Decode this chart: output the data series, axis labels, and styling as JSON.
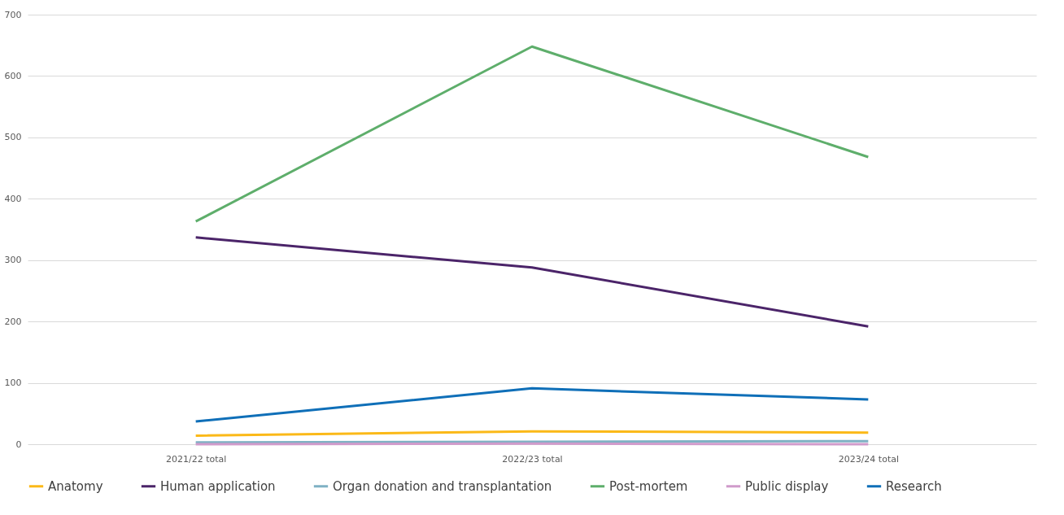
{
  "chart_data": {
    "type": "line",
    "categories": [
      "2021/22 total",
      "2022/23 total",
      "2023/24 total"
    ],
    "series": [
      {
        "name": "Anatomy",
        "color": "#fbb918",
        "values": [
          14,
          21,
          19
        ]
      },
      {
        "name": "Human application",
        "color": "#4b2469",
        "values": [
          337,
          288,
          192
        ]
      },
      {
        "name": "Organ donation and transplantation",
        "color": "#7fb1c4",
        "values": [
          3,
          4,
          5
        ]
      },
      {
        "name": "Post-mortem",
        "color": "#5eae6b",
        "values": [
          363,
          648,
          468
        ]
      },
      {
        "name": "Public display",
        "color": "#d09bcb",
        "values": [
          0,
          1,
          0
        ]
      },
      {
        "name": "Research",
        "color": "#0f6fb8",
        "values": [
          37,
          91,
          73
        ]
      }
    ],
    "ylim": [
      0,
      700
    ],
    "yticks": [
      0,
      100,
      200,
      300,
      400,
      500,
      600,
      700
    ],
    "grid": "y",
    "legend": "bottom",
    "marker": "none",
    "line_style": "solid"
  }
}
